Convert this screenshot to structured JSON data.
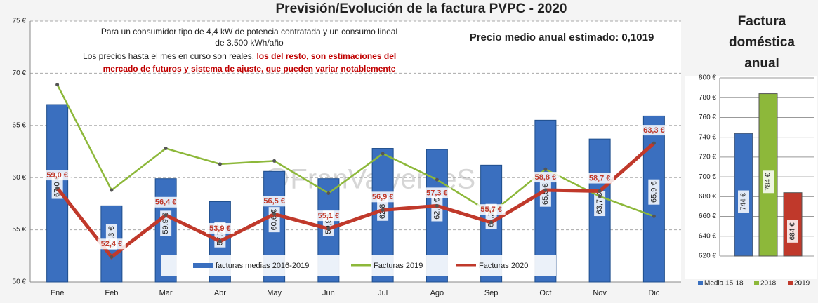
{
  "chart_data": [
    {
      "type": "combo",
      "title": "Previsión/Evolución de la factura PVPC - 2020",
      "annotations": [
        "Para un consumidor tipo de 4,4 kW de potencia contratada y un consumo lineal",
        "de 3.500 kWh/año",
        "Los precios hasta el mes en curso son reales, ",
        "los del resto, son estimaciones del",
        "mercado de futuros y sistema de ajuste, que pueden variar notablemente",
        "Precio medio anual estimado: 0,1019",
        "@FranValverdeS"
      ],
      "categories": [
        "Ene",
        "Feb",
        "Mar",
        "Abr",
        "May",
        "Jun",
        "Jul",
        "Ago",
        "Sep",
        "Oct",
        "Nov",
        "Dic"
      ],
      "series": [
        {
          "name": "facturas medias 2016-2019",
          "type": "bar",
          "color": "#3a6fbf",
          "values": [
            67.0,
            57.3,
            59.9,
            57.7,
            60.6,
            59.9,
            62.8,
            62.7,
            61.2,
            65.5,
            63.7,
            65.9
          ],
          "value_labels": [
            "67,0 €",
            "57,3 €",
            "59,9 €",
            "57,7 €",
            "60,6 €",
            "59,9 €",
            "62,8 €",
            "62,7 €",
            "61,2 €",
            "65,5 €",
            "63,7 €",
            "65,9 €"
          ]
        },
        {
          "name": "Facturas 2019",
          "type": "line",
          "color": "#8db83a",
          "values": [
            68.9,
            58.8,
            62.8,
            61.3,
            61.6,
            58.5,
            62.3,
            59.8,
            56.6,
            60.8,
            58.2,
            56.3
          ]
        },
        {
          "name": "Facturas 2020",
          "type": "line",
          "color": "#c0392b",
          "values": [
            59.0,
            52.4,
            56.4,
            53.9,
            56.5,
            55.1,
            56.9,
            57.3,
            55.7,
            58.8,
            58.7,
            63.3
          ],
          "value_labels": [
            "59,0 €",
            "52,4 €",
            "56,4 €",
            "53,9 €",
            "56,5 €",
            "55,1 €",
            "56,9 €",
            "57,3 €",
            "55,7 €",
            "58,8 €",
            "58,7 €",
            "63,3 €"
          ]
        }
      ],
      "ylim": [
        50,
        75
      ],
      "yticks": [
        {
          "value": 50,
          "label": "50 €"
        },
        {
          "value": 55,
          "label": "55 €"
        },
        {
          "value": 60,
          "label": "60 €"
        },
        {
          "value": 65,
          "label": "65 €"
        },
        {
          "value": 70,
          "label": "70 €"
        },
        {
          "value": 75,
          "label": "75 €"
        }
      ],
      "grid": true
    },
    {
      "type": "bar",
      "title": [
        "Factura",
        "doméstica",
        "anual"
      ],
      "series": [
        {
          "name": "Media 15-18",
          "color": "#3a6fbf",
          "values": [
            744
          ],
          "value_labels": [
            "744 €"
          ]
        },
        {
          "name": "2018",
          "color": "#8db83a",
          "values": [
            784
          ],
          "value_labels": [
            "784 €"
          ]
        },
        {
          "name": "2019",
          "color": "#c0392b",
          "values": [
            684
          ],
          "value_labels": [
            "684 €"
          ]
        }
      ],
      "ylim": [
        620,
        800
      ],
      "yticks": [
        {
          "value": 620,
          "label": "620 €"
        },
        {
          "value": 640,
          "label": "640 €"
        },
        {
          "value": 660,
          "label": "660 €"
        },
        {
          "value": 680,
          "label": "680 €"
        },
        {
          "value": 700,
          "label": "700 €"
        },
        {
          "value": 720,
          "label": "720 €"
        },
        {
          "value": 740,
          "label": "740 €"
        },
        {
          "value": 760,
          "label": "760 €"
        },
        {
          "value": 780,
          "label": "780 €"
        },
        {
          "value": 800,
          "label": "800 €"
        }
      ],
      "grid": true
    }
  ]
}
